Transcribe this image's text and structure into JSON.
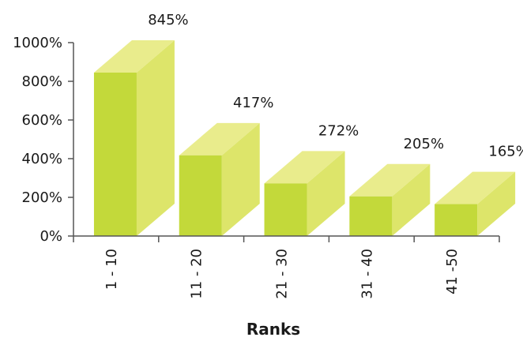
{
  "chart_data": {
    "type": "bar",
    "categories": [
      "1 - 10",
      "11 - 20",
      "21 - 30",
      "31 - 40",
      "41 -50"
    ],
    "values": [
      845,
      417,
      272,
      205,
      165
    ],
    "value_labels": [
      "845%",
      "417%",
      "272%",
      "205%",
      "165%"
    ],
    "title": "",
    "xlabel": "Ranks",
    "ylabel": "",
    "ylim": [
      0,
      1000
    ],
    "yticks": [
      0,
      200,
      400,
      600,
      800,
      1000
    ],
    "ytick_labels": [
      "0%",
      "200%",
      "400%",
      "600%",
      "800%",
      "1000%"
    ],
    "grid": false,
    "legend": "none",
    "style": "3d-box",
    "colors": {
      "front": "#c3d93a",
      "side": "#dde56a",
      "top": "#e9ec8c",
      "axis": "#555555"
    }
  }
}
